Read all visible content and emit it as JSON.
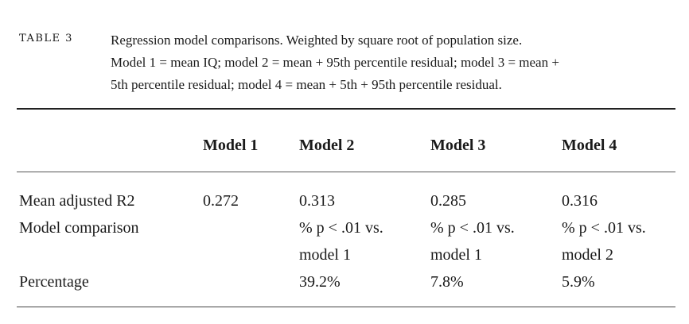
{
  "table": {
    "label": "TABLE 3",
    "caption_lines": [
      "Regression model comparisons. Weighted by square root of population size.",
      "Model 1 = mean IQ; model 2 = mean + 95th percentile residual; model 3 = mean +",
      "5th percentile residual; model 4 = mean + 5th + 95th percentile residual."
    ],
    "headers": [
      "Model 1",
      "Model 2",
      "Model 3",
      "Model 4"
    ],
    "rows": [
      {
        "label": "Mean adjusted R2",
        "values": [
          "0.272",
          "0.313",
          "0.285",
          "0.316"
        ]
      },
      {
        "label": "Model comparison",
        "values_line1": [
          "",
          "% p < .01 vs.",
          "% p < .01 vs.",
          "% p < .01 vs."
        ],
        "values_line2": [
          "",
          "model 1",
          "model 1",
          "model 2"
        ]
      },
      {
        "label": "Percentage",
        "values": [
          "",
          "39.2%",
          "7.8%",
          "5.9%"
        ]
      }
    ]
  }
}
